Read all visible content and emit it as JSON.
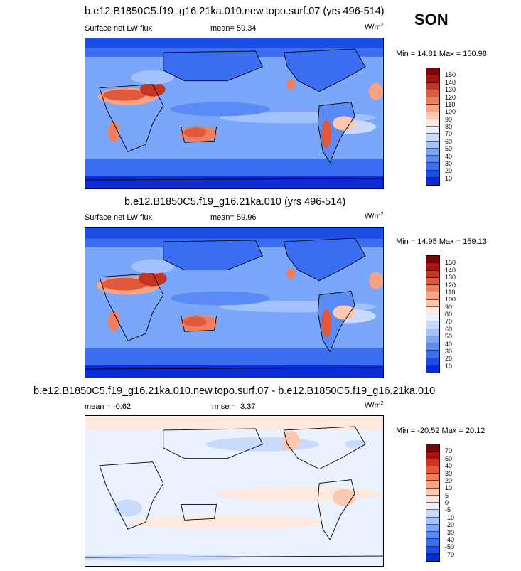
{
  "season": "SON",
  "colors": {
    "ramp_abs": [
      "#08046b",
      "#0b2bd6",
      "#1b4ee3",
      "#3a6df0",
      "#5a8bf6",
      "#7ba7fa",
      "#a2c2fd",
      "#c8dbfe",
      "#eaf2ff",
      "#ffe9df",
      "#fdc8b2",
      "#f9a384",
      "#f07e5c",
      "#e2583b",
      "#c73420",
      "#a8150e",
      "#7a0505"
    ],
    "ramp_diff": [
      "#08046b",
      "#0b2bd6",
      "#1b4ee3",
      "#3a6df0",
      "#5a8bf6",
      "#7ba7fa",
      "#a2c2fd",
      "#c8dbfe",
      "#eaf2ff",
      "#ffe9df",
      "#fdc8b2",
      "#f9a384",
      "#f07e5c",
      "#e2583b",
      "#c73420",
      "#a8150e",
      "#7a0505"
    ]
  },
  "chart_data": [
    {
      "type": "heatmap",
      "title": "b.e12.B1850C5.f19_g16.21ka.010.new.topo.surf.07 (yrs 496-514)",
      "variable": "Surface net LW flux",
      "mean_label": "mean=",
      "mean": "59.34",
      "units": "W/m",
      "units_sup": "2",
      "minmax": "Min = 14.81 Max = 150.98",
      "colorbar_levels": [
        "10",
        "20",
        "30",
        "40",
        "50",
        "60",
        "70",
        "80",
        "90",
        "100",
        "110",
        "120",
        "130",
        "140",
        "150"
      ],
      "min": 14.81,
      "max": 150.98
    },
    {
      "type": "heatmap",
      "title": "b.e12.B1850C5.f19_g16.21ka.010 (yrs 496-514)",
      "variable": "Surface net LW flux",
      "mean_label": "mean=",
      "mean": "59.96",
      "units": "W/m",
      "units_sup": "2",
      "minmax": "Min = 14.95 Max = 159.13",
      "colorbar_levels": [
        "10",
        "20",
        "30",
        "40",
        "50",
        "60",
        "70",
        "80",
        "90",
        "100",
        "110",
        "120",
        "130",
        "140",
        "150"
      ],
      "min": 14.95,
      "max": 159.13
    },
    {
      "type": "heatmap",
      "title": "b.e12.B1850C5.f19_g16.21ka.010.new.topo.surf.07 - b.e12.B1850C5.f19_g16.21ka.010",
      "mean_label": "mean =",
      "mean": "-0.62",
      "rmse_label": "rmse =",
      "rmse": "3.37",
      "units": "W/m",
      "units_sup": "2",
      "minmax": "Min = -20.52 Max = 20.12",
      "colorbar_levels": [
        "-70",
        "-50",
        "-40",
        "-30",
        "-20",
        "-10",
        "-5",
        "0",
        "5",
        "10",
        "20",
        "30",
        "40",
        "50",
        "70"
      ],
      "min": -20.52,
      "max": 20.12
    }
  ]
}
